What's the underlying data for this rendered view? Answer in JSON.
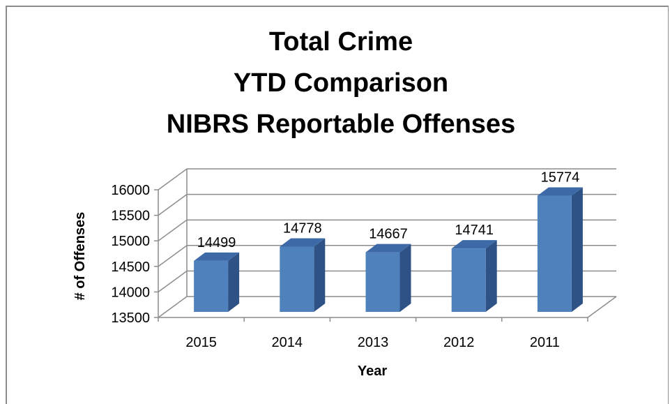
{
  "chart_data": {
    "type": "bar",
    "title_lines": [
      "Total Crime",
      "YTD Comparison",
      "NIBRS Reportable Offenses"
    ],
    "xlabel": "Year",
    "ylabel": "# of Offenses",
    "categories": [
      "2015",
      "2014",
      "2013",
      "2012",
      "2011"
    ],
    "values": [
      14499,
      14778,
      14667,
      14741,
      15774
    ],
    "data_labels": [
      "14499",
      "14778",
      "14667",
      "14741",
      "15774"
    ],
    "ylim": [
      13500,
      16000
    ],
    "yticks": [
      "13500",
      "14000",
      "14500",
      "15000",
      "15500",
      "16000"
    ],
    "ytick_values": [
      13500,
      14000,
      14500,
      15000,
      15500,
      16000
    ],
    "grid": true,
    "legend": "none",
    "bar_style": "3d",
    "colors": {
      "bar_front": "#4f81bd",
      "bar_side": "#2f5286",
      "bar_top": "#3d6aa6",
      "gridline": "#8c8c8c"
    }
  }
}
